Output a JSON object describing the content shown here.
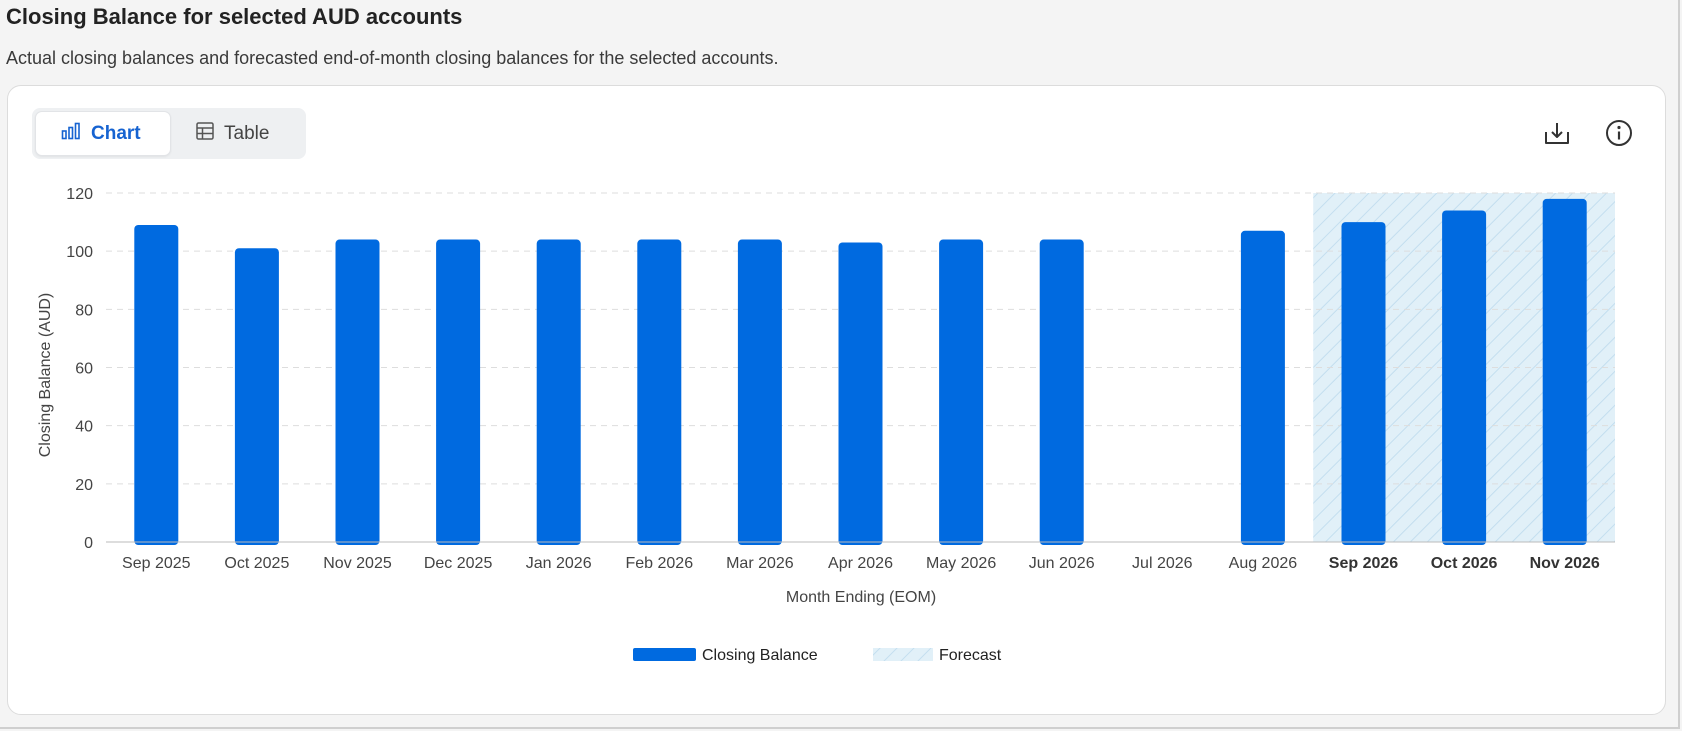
{
  "header": {
    "title": "Closing Balance for selected AUD accounts",
    "subtitle": "Actual closing balances and forecasted end-of-month closing balances for the selected accounts."
  },
  "view_toggle": {
    "chart_label": "Chart",
    "table_label": "Table",
    "selected": "chart",
    "chart_icon": "bar-chart-icon",
    "table_icon": "table-icon"
  },
  "toolbar": {
    "download_icon": "download-icon",
    "info_icon": "info-icon"
  },
  "colors": {
    "bar": "#006ae0",
    "forecast_fill": "#e1f0f8",
    "forecast_hatch": "#c3deef",
    "gridline": "#dddddd"
  },
  "chart_data": {
    "type": "bar",
    "categories": [
      "Sep 2025",
      "Oct 2025",
      "Nov 2025",
      "Dec 2025",
      "Jan 2026",
      "Feb 2026",
      "Mar 2026",
      "Apr 2026",
      "May 2026",
      "Jun 2026",
      "Jul 2026",
      "Aug 2026",
      "Sep 2026",
      "Oct 2026",
      "Nov 2026"
    ],
    "series": [
      {
        "name": "Closing Balance",
        "values": [
          109,
          101,
          104,
          104,
          104,
          104,
          104,
          103,
          104,
          104,
          null,
          107,
          110,
          114,
          118
        ]
      }
    ],
    "forecast_categories": [
      "Sep 2026",
      "Oct 2026",
      "Nov 2026"
    ],
    "xlabel": "Month Ending (EOM)",
    "ylabel": "Closing Balance (AUD)",
    "ylim": [
      0,
      120
    ],
    "yticks": [
      0,
      20,
      40,
      60,
      80,
      100,
      120
    ],
    "grid": "horizontal dashed",
    "legend": {
      "placement": "bottom-center",
      "entries": [
        "Closing Balance",
        "Forecast"
      ]
    }
  }
}
